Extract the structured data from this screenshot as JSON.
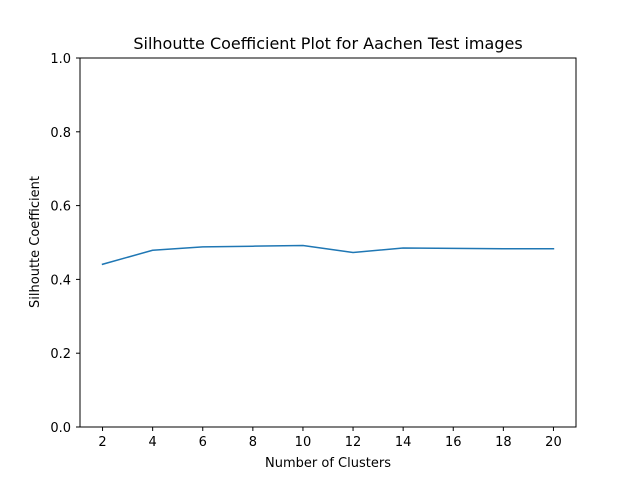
{
  "chart_data": {
    "type": "line",
    "title": "Silhoutte Coefficient Plot for Aachen Test images",
    "xlabel": "Number of Clusters",
    "ylabel": "Silhoutte Coefficient",
    "xlim": [
      1.1,
      20.9
    ],
    "ylim": [
      0.0,
      1.0
    ],
    "xticks": [
      2,
      4,
      6,
      8,
      10,
      12,
      14,
      16,
      18,
      20
    ],
    "xtick_labels": [
      "2",
      "4",
      "6",
      "8",
      "10",
      "12",
      "14",
      "16",
      "18",
      "20"
    ],
    "yticks": [
      0.0,
      0.2,
      0.4,
      0.6,
      0.8,
      1.0
    ],
    "ytick_labels": [
      "0.0",
      "0.2",
      "0.4",
      "0.6",
      "0.8",
      "1.0"
    ],
    "grid": false,
    "series": [
      {
        "color": "#1f77b4",
        "x": [
          2,
          4,
          6,
          8,
          10,
          12,
          14,
          16,
          18,
          20
        ],
        "y": [
          0.441,
          0.479,
          0.488,
          0.49,
          0.492,
          0.473,
          0.485,
          0.484,
          0.483,
          0.483
        ]
      }
    ]
  }
}
